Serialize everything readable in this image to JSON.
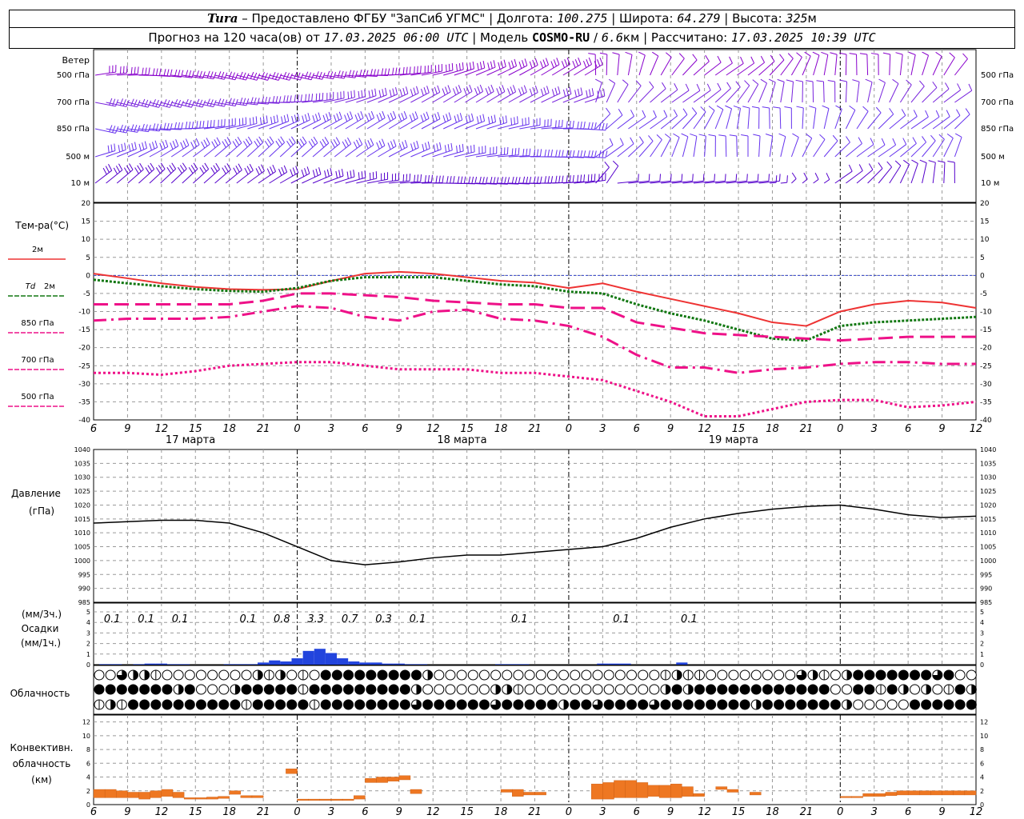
{
  "header": {
    "station": "Tura",
    "provider": "Предоставлено ФГБУ \"ЗапСиб УГМС\"",
    "lon_label": "Долгота:",
    "lon": "100.275",
    "lat_label": "Широта:",
    "lat": "64.279",
    "alt_label": "Высота:",
    "alt": "325",
    "alt_unit": "м",
    "forecast_label": "Прогноз на 120 часа(ов) от",
    "forecast_time": "17.03.2025 06:00 UTC",
    "model_label": "Модель",
    "model": "COSMO-RU",
    "resolution": "6.6",
    "res_unit": "км",
    "calc_label": "Рассчитано:",
    "calc_time": "17.03.2025 10:39 UTC"
  },
  "chart_data": [
    {
      "type": "line",
      "panel": "wind",
      "title": "Ветер",
      "levels": [
        "500 гПа",
        "700 гПа",
        "850 гПа",
        "500 м",
        "10 м"
      ],
      "colors": [
        "#8800cc",
        "#7722dd",
        "#6633ee",
        "#6633ee",
        "#5500cc"
      ]
    },
    {
      "type": "line",
      "panel": "temperature",
      "ylabel": "Тем-ра(°C)",
      "ylim": [
        -40,
        20
      ],
      "yticks": [
        20,
        15,
        10,
        5,
        0,
        -5,
        -10,
        -15,
        -20,
        -25,
        -30,
        -35,
        -40
      ],
      "x_hours": [
        0,
        3,
        6,
        9,
        12,
        15,
        18,
        21,
        24,
        27,
        30,
        33,
        36,
        39,
        42,
        45,
        48,
        51,
        54,
        57,
        60,
        63,
        66,
        69,
        72,
        75,
        78
      ],
      "series": [
        {
          "name": "2м",
          "color": "#ee3333",
          "values": [
            0.5,
            -0.8,
            -2.2,
            -3.2,
            -3.8,
            -4.0,
            -3.8,
            -1.5,
            0.5,
            1,
            0.5,
            -0.5,
            -1.5,
            -2,
            -3.5,
            -2.2,
            -4.5,
            -6.5,
            -8.5,
            -10.5,
            -13,
            -14,
            -10,
            -8,
            -7,
            -7.5,
            -9
          ]
        },
        {
          "name": "Td 2м",
          "color": "#117711",
          "values": [
            -1.2,
            -2.2,
            -3.0,
            -3.8,
            -4.3,
            -4.5,
            -3.5,
            -1.5,
            -0.5,
            -0.5,
            -0.5,
            -1.5,
            -2.5,
            -3,
            -4.5,
            -5,
            -8,
            -10.5,
            -12.5,
            -15,
            -17.5,
            -18,
            -14,
            -13,
            -12.5,
            -12,
            -11.5
          ]
        },
        {
          "name": "850 гПа",
          "color": "#ee1188",
          "values": [
            -8,
            -8,
            -8,
            -8,
            -8,
            -7,
            -5,
            -5,
            -5.5,
            -6,
            -7,
            -7.5,
            -8,
            -8,
            -9,
            -9,
            -13,
            -14.5,
            -16,
            -16.5,
            -17,
            -17.5,
            -18,
            -17.5,
            -17,
            -17,
            -17
          ]
        },
        {
          "name": "700 гПа",
          "color": "#ee1188",
          "values": [
            -12.5,
            -12,
            -12,
            -12,
            -11.5,
            -10,
            -8.5,
            -9,
            -11.5,
            -12.5,
            -10,
            -9.5,
            -12,
            -12.5,
            -14,
            -17,
            -22,
            -25.5,
            -25.5,
            -27,
            -26,
            -25.5,
            -24.5,
            -24,
            -24,
            -24.5,
            -24.5
          ]
        },
        {
          "name": "500 гПа",
          "color": "#ee1188",
          "values": [
            -27,
            -27,
            -27.5,
            -26.5,
            -25,
            -24.5,
            -24,
            -24,
            -25,
            -26,
            -26,
            -26,
            -27,
            -27,
            -28,
            -29,
            -32,
            -35,
            -39,
            -39,
            -37,
            -35,
            -34.5,
            -34.5,
            -36.5,
            -36,
            -35
          ]
        }
      ]
    },
    {
      "type": "line",
      "panel": "pressure",
      "ylabel": "Давление",
      "yunit": "(гПа)",
      "ylim": [
        985,
        1040
      ],
      "yticks": [
        1040,
        1035,
        1030,
        1025,
        1020,
        1015,
        1010,
        1005,
        1000,
        995,
        990,
        985
      ],
      "x_hours": [
        0,
        3,
        6,
        9,
        12,
        15,
        18,
        21,
        24,
        27,
        30,
        33,
        36,
        39,
        42,
        45,
        48,
        51,
        54,
        57,
        60,
        63,
        66,
        69,
        72,
        75,
        78
      ],
      "series": [
        {
          "name": "",
          "color": "#000000",
          "values": [
            1013.5,
            1014,
            1014.5,
            1014.5,
            1013.5,
            1010,
            1005,
            1000,
            998.5,
            999.5,
            1001,
            1002,
            1002,
            1003,
            1004,
            1005,
            1008,
            1012,
            1015,
            1017,
            1018.5,
            1019.5,
            1020,
            1018.5,
            1016.5,
            1015.5,
            1016
          ]
        }
      ]
    },
    {
      "type": "bar",
      "panel": "precipitation",
      "ylabel": "Осадки",
      "yunit_top": "(мм/3ч.)",
      "yunit_bottom": "(мм/1ч.)",
      "ylim": [
        0,
        5
      ],
      "yticks": [
        5,
        4,
        3,
        2,
        1,
        0
      ],
      "labels": [
        {
          "hour": 1.5,
          "text": "0.1"
        },
        {
          "hour": 4.5,
          "text": "0.1"
        },
        {
          "hour": 7.5,
          "text": "0.1"
        },
        {
          "hour": 13.5,
          "text": "0.1"
        },
        {
          "hour": 16.5,
          "text": "0.8"
        },
        {
          "hour": 19.5,
          "text": "3.3"
        },
        {
          "hour": 22.5,
          "text": "0.7"
        },
        {
          "hour": 25.5,
          "text": "0.3"
        },
        {
          "hour": 28.5,
          "text": "0.1"
        },
        {
          "hour": 37.5,
          "text": "0.1"
        },
        {
          "hour": 46.5,
          "text": "0.1"
        },
        {
          "hour": 52.5,
          "text": "0.1"
        }
      ],
      "hourly": [
        {
          "hour": 1,
          "value": 0.05
        },
        {
          "hour": 2,
          "value": 0.05
        },
        {
          "hour": 4,
          "value": 0.05
        },
        {
          "hour": 5,
          "value": 0.1
        },
        {
          "hour": 6,
          "value": 0.1
        },
        {
          "hour": 7,
          "value": 0.05
        },
        {
          "hour": 8,
          "value": 0.05
        },
        {
          "hour": 12,
          "value": 0.05
        },
        {
          "hour": 13,
          "value": 0.05
        },
        {
          "hour": 14,
          "value": 0.05
        },
        {
          "hour": 15,
          "value": 0.2
        },
        {
          "hour": 16,
          "value": 0.4
        },
        {
          "hour": 17,
          "value": 0.3
        },
        {
          "hour": 18,
          "value": 0.6
        },
        {
          "hour": 19,
          "value": 1.3
        },
        {
          "hour": 20,
          "value": 1.5
        },
        {
          "hour": 21,
          "value": 1.1
        },
        {
          "hour": 22,
          "value": 0.6
        },
        {
          "hour": 23,
          "value": 0.3
        },
        {
          "hour": 24,
          "value": 0.2
        },
        {
          "hour": 25,
          "value": 0.2
        },
        {
          "hour": 26,
          "value": 0.1
        },
        {
          "hour": 27,
          "value": 0.1
        },
        {
          "hour": 28,
          "value": 0.05
        },
        {
          "hour": 29,
          "value": 0.05
        },
        {
          "hour": 36,
          "value": 0.05
        },
        {
          "hour": 37,
          "value": 0.05
        },
        {
          "hour": 38,
          "value": 0.05
        },
        {
          "hour": 45,
          "value": 0.1
        },
        {
          "hour": 46,
          "value": 0.1
        },
        {
          "hour": 47,
          "value": 0.1
        },
        {
          "hour": 52,
          "value": 0.2
        }
      ],
      "color": "#2244dd"
    },
    {
      "type": "table",
      "panel": "cloudiness",
      "ylabel": "Облачность",
      "rows": [
        "0,0,3,2,2,1,0,0,0,0,0,0,0,0,2,1,2,0,1,0,4,4,4,4,4,4,4,4,4,2,0,0,0,0,0,0,0,0,0,0,0,0,0,0,0,0,0,0,0,0,1,2,1,1,0,0,0,0,0,0,0,0,3,2,1,0,2,4,4,4,4,4,4,4,3,4,0,0,0,0,0,0,0,0,0,0,0,0,0,0,0,0,0,0,0,0,0,0,0,0,0,0,0,0,0,0,0,0,0,0,0,0,0,0,0",
        "4,4,4,4,4,4,4,2,4,0,0,0,2,4,4,4,4,4,1,4,4,4,4,4,4,4,4,4,2,0,0,0,0,0,0,2,2,1,0,0,0,0,0,0,0,0,0,0,0,0,2,4,2,4,4,4,4,4,4,4,4,4,4,4,4,0,0,4,4,1,4,2,0,2,0,1,4,2,0,0,0,0,0,0,0,0,0,0,0,0,0,0,0,0,0,0,0,0,0,0,0,0,0,0,0,0,0,0,0,0,0,0,0,0,0,0,0",
        "1,2,1,4,4,4,4,4,4,4,4,4,4,1,4,4,4,4,4,1,4,4,4,4,4,4,4,4,3,4,4,4,4,4,4,3,4,4,4,4,4,2,4,4,3,4,4,4,4,3,4,4,4,4,4,4,4,4,2,4,4,4,4,4,4,4,2,0,0,0,0,0,4,4,4,4,4,4,0,0,2,0,4,4,4,0,0,0,0,0,0,0,0,0,0,0,0,0,0,0,0,0,0,0,0,0,0,0,0,0,0,4,0,4,4,4,4,4,4,2"
      ]
    },
    {
      "type": "bar",
      "panel": "convective",
      "ylabel_lines": [
        "Конвективн.",
        "облачность",
        "(км)"
      ],
      "ylim": [
        0,
        13
      ],
      "yticks": [
        12,
        10,
        8,
        6,
        4,
        2,
        0
      ],
      "color": "#ee7722",
      "bars": [
        {
          "hour": 0,
          "base": 1.0,
          "top": 2.2
        },
        {
          "hour": 1,
          "base": 1.0,
          "top": 2.2
        },
        {
          "hour": 2,
          "base": 1.0,
          "top": 2.0
        },
        {
          "hour": 3,
          "base": 1.0,
          "top": 1.8
        },
        {
          "hour": 4,
          "base": 0.8,
          "top": 1.8
        },
        {
          "hour": 5,
          "base": 1.0,
          "top": 2.0
        },
        {
          "hour": 6,
          "base": 1.2,
          "top": 2.2
        },
        {
          "hour": 7,
          "base": 1.0,
          "top": 1.8
        },
        {
          "hour": 8,
          "base": 0.8,
          "top": 1.0
        },
        {
          "hour": 9,
          "base": 0.8,
          "top": 1.0
        },
        {
          "hour": 10,
          "base": 0.8,
          "top": 1.1
        },
        {
          "hour": 11,
          "base": 0.9,
          "top": 1.2
        },
        {
          "hour": 12,
          "base": 1.5,
          "top": 2.0
        },
        {
          "hour": 13,
          "base": 1.0,
          "top": 1.3
        },
        {
          "hour": 14,
          "base": 1.0,
          "top": 1.3
        },
        {
          "hour": 17,
          "base": 4.5,
          "top": 5.2
        },
        {
          "hour": 18,
          "base": 0.6,
          "top": 0.8
        },
        {
          "hour": 19,
          "base": 0.6,
          "top": 0.8
        },
        {
          "hour": 20,
          "base": 0.6,
          "top": 0.8
        },
        {
          "hour": 21,
          "base": 0.6,
          "top": 0.8
        },
        {
          "hour": 22,
          "base": 0.6,
          "top": 0.8
        },
        {
          "hour": 23,
          "base": 0.8,
          "top": 1.3
        },
        {
          "hour": 24,
          "base": 3.2,
          "top": 3.8
        },
        {
          "hour": 25,
          "base": 3.2,
          "top": 4.0
        },
        {
          "hour": 26,
          "base": 3.4,
          "top": 4.0
        },
        {
          "hour": 27,
          "base": 3.6,
          "top": 4.2
        },
        {
          "hour": 28,
          "base": 1.6,
          "top": 2.2
        },
        {
          "hour": 36,
          "base": 1.8,
          "top": 2.2
        },
        {
          "hour": 37,
          "base": 1.2,
          "top": 2.2
        },
        {
          "hour": 38,
          "base": 1.4,
          "top": 1.8
        },
        {
          "hour": 39,
          "base": 1.4,
          "top": 1.8
        },
        {
          "hour": 44,
          "base": 0.8,
          "top": 3.0
        },
        {
          "hour": 45,
          "base": 0.8,
          "top": 3.2
        },
        {
          "hour": 46,
          "base": 1.0,
          "top": 3.5
        },
        {
          "hour": 47,
          "base": 1.0,
          "top": 3.5
        },
        {
          "hour": 48,
          "base": 1.0,
          "top": 3.2
        },
        {
          "hour": 49,
          "base": 1.2,
          "top": 2.8
        },
        {
          "hour": 50,
          "base": 1.0,
          "top": 2.8
        },
        {
          "hour": 51,
          "base": 1.0,
          "top": 3.0
        },
        {
          "hour": 52,
          "base": 1.2,
          "top": 2.6
        },
        {
          "hour": 53,
          "base": 1.2,
          "top": 1.6
        },
        {
          "hour": 55,
          "base": 2.2,
          "top": 2.6
        },
        {
          "hour": 56,
          "base": 1.8,
          "top": 2.2
        },
        {
          "hour": 58,
          "base": 1.4,
          "top": 1.8
        },
        {
          "hour": 66,
          "base": 1.0,
          "top": 1.2
        },
        {
          "hour": 67,
          "base": 1.0,
          "top": 1.2
        },
        {
          "hour": 68,
          "base": 1.2,
          "top": 1.6
        },
        {
          "hour": 69,
          "base": 1.2,
          "top": 1.6
        },
        {
          "hour": 70,
          "base": 1.3,
          "top": 1.8
        },
        {
          "hour": 71,
          "base": 1.4,
          "top": 2.0
        },
        {
          "hour": 72,
          "base": 1.4,
          "top": 2.0
        },
        {
          "hour": 73,
          "base": 1.4,
          "top": 2.0
        },
        {
          "hour": 74,
          "base": 1.4,
          "top": 2.0
        },
        {
          "hour": 75,
          "base": 1.4,
          "top": 2.0
        },
        {
          "hour": 76,
          "base": 1.4,
          "top": 2.0
        },
        {
          "hour": 77,
          "base": 1.4,
          "top": 2.0
        }
      ]
    }
  ],
  "axis": {
    "hour_labels": [
      "6",
      "9",
      "12",
      "15",
      "18",
      "21",
      "0",
      "3",
      "6",
      "9",
      "12",
      "15",
      "18",
      "21",
      "0",
      "3",
      "6",
      "9",
      "12",
      "15",
      "18",
      "21",
      "0",
      "3",
      "6",
      "9",
      "12"
    ],
    "day_labels": [
      {
        "hour": 7.5,
        "text": "17 марта"
      },
      {
        "hour": 31.5,
        "text": "18 марта"
      },
      {
        "hour": 55.5,
        "text": "19 марта"
      }
    ],
    "day_lines": [
      18,
      42,
      66
    ]
  },
  "legend": {
    "t2m": "2м",
    "td_prefix": "Td",
    "td_suffix": "2м",
    "p850": "850 гПа",
    "p700": "700 гПа",
    "p500": "500 гПа"
  }
}
